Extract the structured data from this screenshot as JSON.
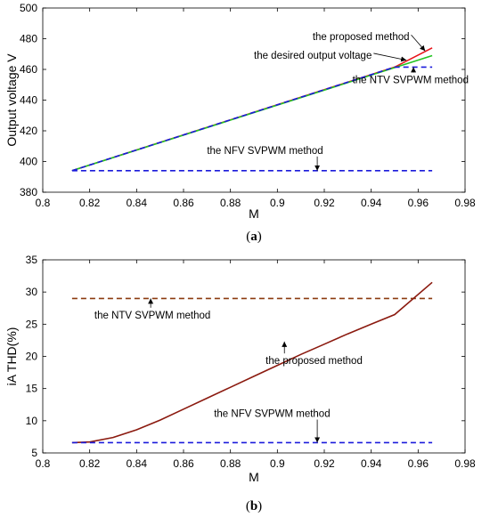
{
  "chart_data": [
    {
      "type": "line",
      "panel_label": "(a)",
      "panel_letter": "a",
      "xlabel": "M",
      "ylabel": "Output voltage V",
      "xlim": [
        0.8,
        0.98
      ],
      "ylim": [
        380,
        500
      ],
      "xticks": [
        0.8,
        0.82,
        0.84,
        0.86,
        0.88,
        0.9,
        0.92,
        0.94,
        0.96,
        0.98
      ],
      "yticks": [
        380,
        400,
        420,
        440,
        460,
        480,
        500
      ],
      "grid": false,
      "series": [
        {
          "name": "the proposed method",
          "color": "#e8141a",
          "style": "solid",
          "x": [
            0.8125,
            0.95,
            0.966
          ],
          "y": [
            394,
            461.5,
            474
          ]
        },
        {
          "name": "the desired output voltage",
          "color": "#22c422",
          "style": "solid",
          "x": [
            0.8125,
            0.966
          ],
          "y": [
            394,
            469
          ]
        },
        {
          "name": "the NTV SVPWM method",
          "color": "#1a1adb",
          "style": "dashed",
          "x": [
            0.8125,
            0.95,
            0.966
          ],
          "y": [
            394,
            461.5,
            461.5
          ]
        },
        {
          "name": "the NFV SVPWM method",
          "color": "#1a1adb",
          "style": "dashed",
          "x": [
            0.8125,
            0.966
          ],
          "y": [
            394,
            394
          ]
        }
      ],
      "annotations": [
        {
          "text": "the proposed method",
          "x": 0.915,
          "y": 479,
          "tip_x": 0.963,
          "tip_y": 472
        },
        {
          "text": "the desired output voltage",
          "x": 0.89,
          "y": 467,
          "tip_x": 0.955,
          "tip_y": 466
        },
        {
          "text": "the NTV SVPWM method",
          "x": 0.932,
          "y": 451,
          "tip_x": 0.958,
          "tip_y": 461.5
        },
        {
          "text": "the NFV SVPWM method",
          "x": 0.87,
          "y": 405,
          "tip_x": 0.917,
          "tip_y": 394
        }
      ]
    },
    {
      "type": "line",
      "panel_label": "(b)",
      "panel_letter": "b",
      "xlabel": "M",
      "ylabel": "iA THD(%)",
      "xlim": [
        0.8,
        0.98
      ],
      "ylim": [
        5,
        35
      ],
      "xticks": [
        0.8,
        0.82,
        0.84,
        0.86,
        0.88,
        0.9,
        0.92,
        0.94,
        0.96,
        0.98
      ],
      "yticks": [
        5,
        10,
        15,
        20,
        25,
        30,
        35
      ],
      "grid": false,
      "series": [
        {
          "name": "the NTV SVPWM method",
          "color": "#8b3a0f",
          "style": "dashed",
          "x": [
            0.8125,
            0.966
          ],
          "y": [
            29,
            29
          ]
        },
        {
          "name": "the proposed method",
          "color": "#8b1a0f",
          "style": "solid",
          "x": [
            0.8125,
            0.82,
            0.83,
            0.84,
            0.85,
            0.86,
            0.87,
            0.88,
            0.89,
            0.9,
            0.91,
            0.92,
            0.93,
            0.94,
            0.95,
            0.966
          ],
          "y": [
            6.6,
            6.7,
            7.4,
            8.6,
            10.1,
            11.8,
            13.5,
            15.2,
            16.9,
            18.6,
            20.3,
            21.9,
            23.5,
            25.0,
            26.5,
            31.5
          ]
        },
        {
          "name": "the NFV SVPWM method",
          "color": "#1a1adb",
          "style": "dashed",
          "x": [
            0.8125,
            0.966
          ],
          "y": [
            6.6,
            6.6
          ]
        }
      ],
      "annotations": [
        {
          "text": "the NTV SVPWM method",
          "x": 0.822,
          "y": 25.9,
          "tip_x": 0.846,
          "tip_y": 29
        },
        {
          "text": "the proposed method",
          "x": 0.895,
          "y": 18.8,
          "tip_x": 0.903,
          "tip_y": 22.3
        },
        {
          "text": "the NFV SVPWM method",
          "x": 0.873,
          "y": 10.6,
          "tip_x": 0.917,
          "tip_y": 6.6
        }
      ]
    }
  ]
}
